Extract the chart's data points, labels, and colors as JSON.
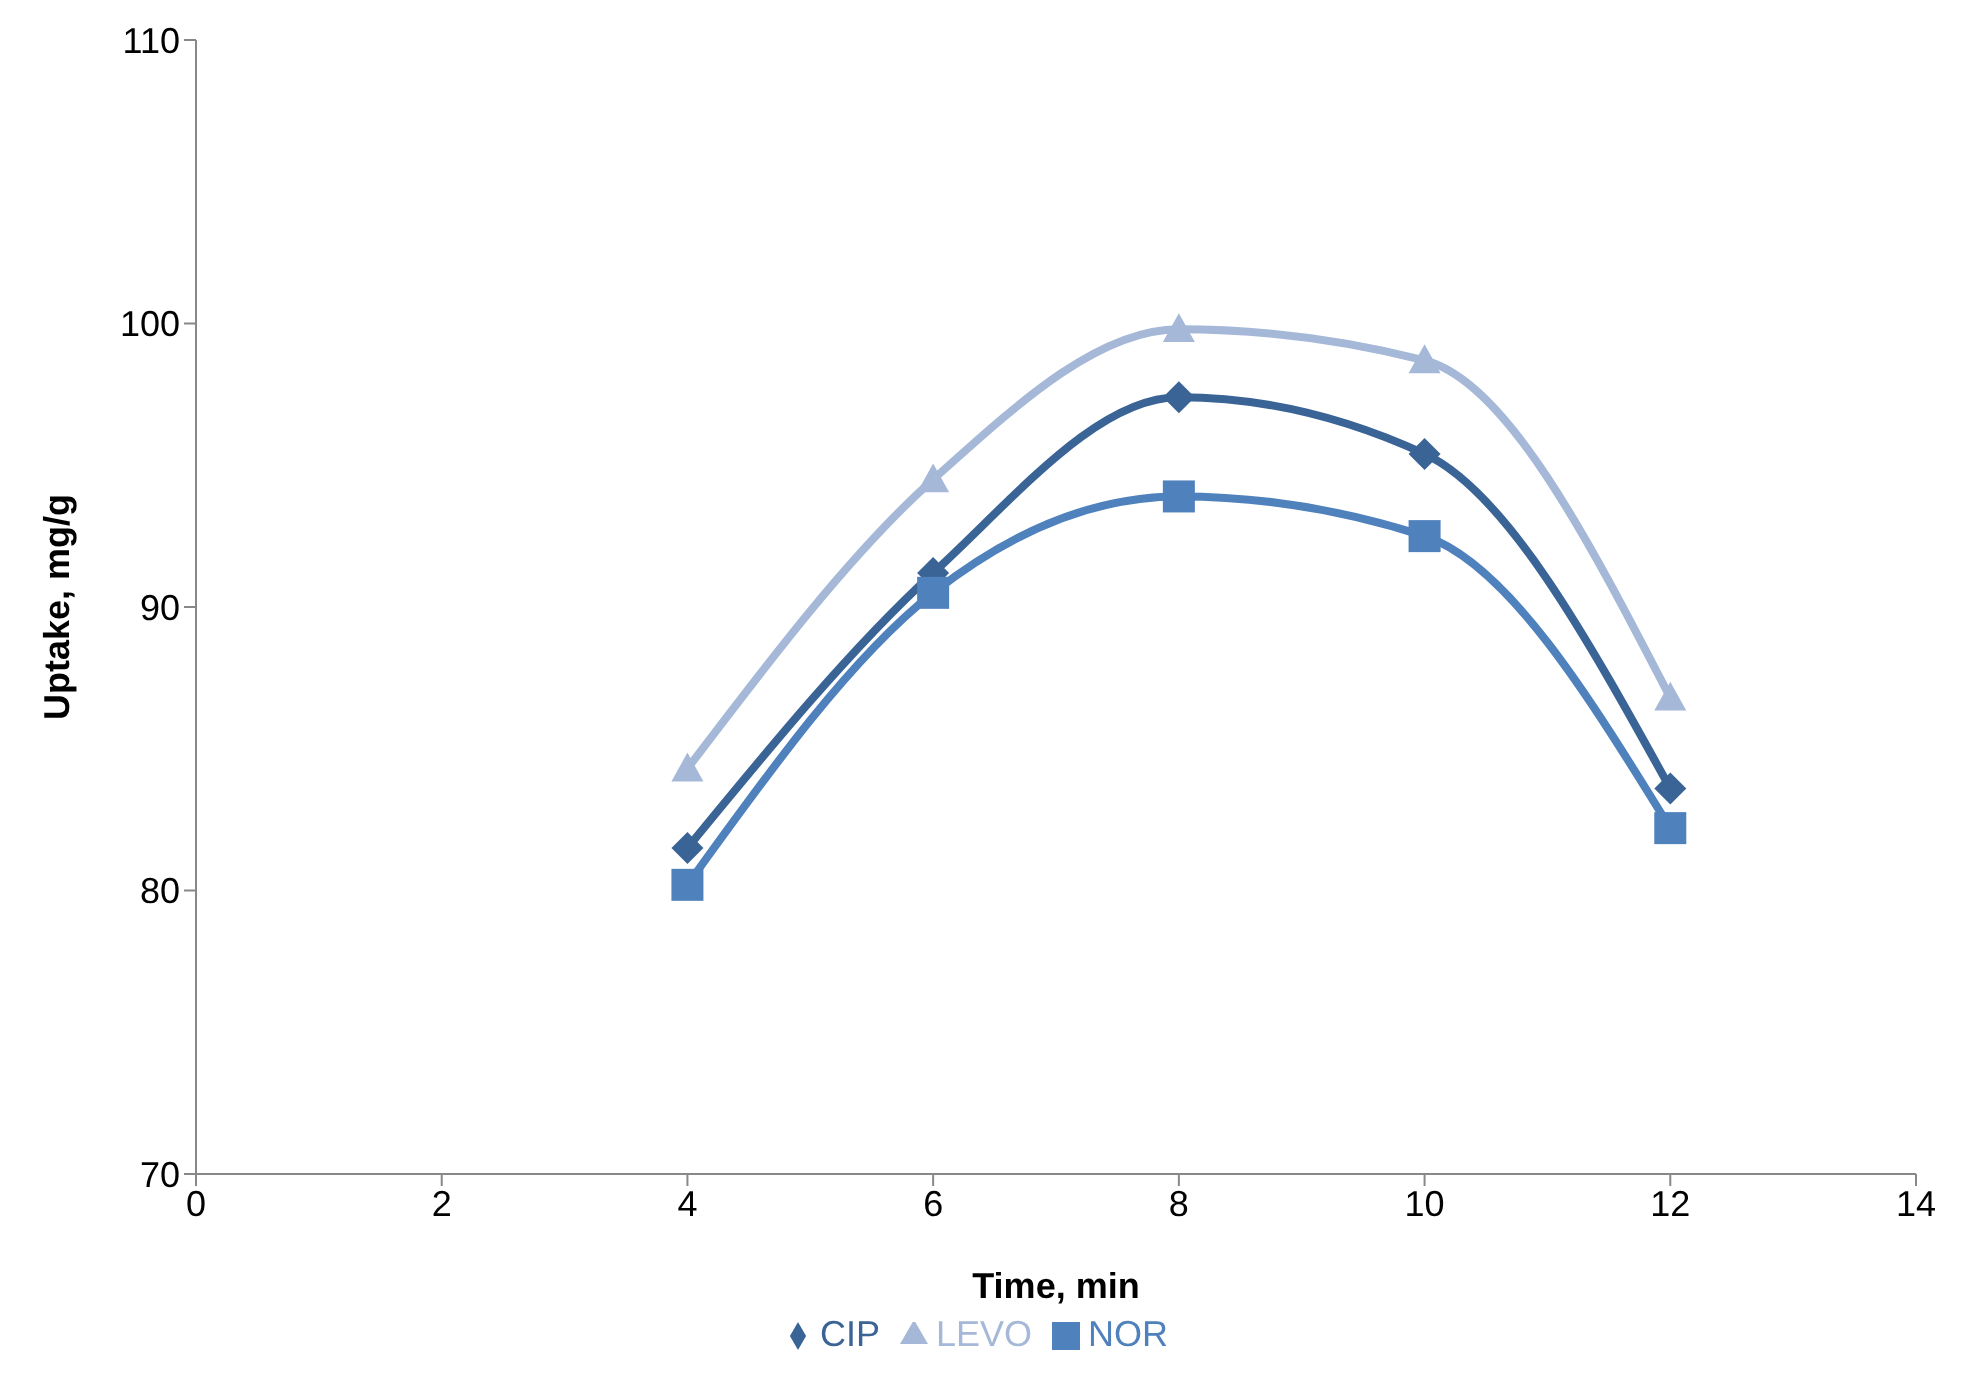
{
  "chart_data": {
    "type": "line",
    "xlabel": "Time, min",
    "ylabel": "Uptake, mg/g",
    "x": [
      4,
      6,
      8,
      10,
      12
    ],
    "xlim": [
      0,
      14
    ],
    "xticks": [
      0,
      2,
      4,
      6,
      8,
      10,
      12,
      14
    ],
    "ylim": [
      70,
      110
    ],
    "yticks": [
      70,
      80,
      90,
      100,
      110
    ],
    "grid": false,
    "legend": "bottom",
    "series": [
      {
        "name": "CIP",
        "color": "#3a6496",
        "marker": "diamond",
        "values": [
          81.5,
          91.2,
          97.4,
          95.4,
          83.6
        ]
      },
      {
        "name": "NOR",
        "color": "#4f81bd",
        "marker": "square",
        "values": [
          80.2,
          90.5,
          93.9,
          92.5,
          82.2
        ]
      },
      {
        "name": "LEVO",
        "color": "#a5b8d8",
        "marker": "triangle",
        "values": [
          84.3,
          94.5,
          99.8,
          98.7,
          86.8
        ]
      }
    ]
  }
}
